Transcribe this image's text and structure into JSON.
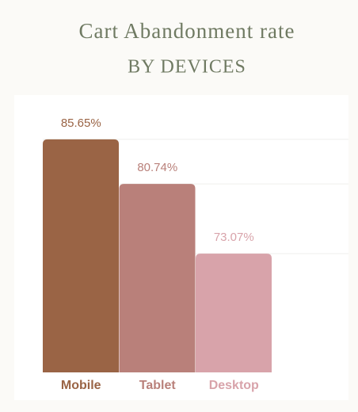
{
  "chart_data": {
    "type": "bar",
    "title": "Cart Abandonment rate",
    "subtitle": "BY DEVICES",
    "categories": [
      "Mobile",
      "Tablet",
      "Desktop"
    ],
    "values": [
      85.65,
      80.74,
      73.07
    ],
    "value_labels": [
      "85.65%",
      "80.74%",
      "73.07%"
    ],
    "colors": [
      "#9a6445",
      "#b9807a",
      "#d8a3aa"
    ],
    "ylim": [
      60,
      90
    ]
  }
}
